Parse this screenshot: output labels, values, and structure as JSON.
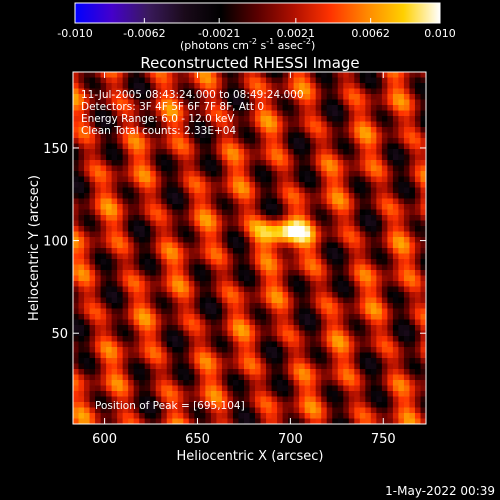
{
  "colorbar": {
    "ticks": [
      "-0.010",
      "-0.0062",
      "-0.0021",
      "0.0021",
      "0.0062",
      "0.010"
    ],
    "range": [
      -0.01,
      0.01
    ],
    "label_main": "(photons cm",
    "label_exp1": "-2",
    "label_mid": " s",
    "label_exp2": "-1",
    "label_end": " asec",
    "label_exp3": "-2",
    "label_close": ")",
    "colormap": [
      "#0000ff",
      "#4400cc",
      "#3a1a5c",
      "#1a0a1a",
      "#000000",
      "#5a0000",
      "#b01000",
      "#ff3300",
      "#ff8800",
      "#ffd000",
      "#ffffff"
    ]
  },
  "info": {
    "time": "11-Jul-2005 08:43:24.000 to 08:49:24.000",
    "detectors": "Detectors: 3F 4F 5F 6F 7F 8F, Att 0",
    "energy": "Energy Range: 6.0 - 12.0 keV",
    "clean": "Clean    Total counts: 2.33E+04",
    "peak": "Position of Peak = [695,104]"
  },
  "footer": {
    "date": "1-May-2022 00:39"
  },
  "chart_data": {
    "type": "heatmap",
    "title": "Reconstructed RHESSI Image",
    "xlabel": "Heliocentric X (arcsec)",
    "ylabel": "Heliocentric Y (arcsec)",
    "xlim": [
      583,
      773
    ],
    "ylim": [
      1,
      191
    ],
    "xticks": [
      600,
      650,
      700,
      750
    ],
    "yticks": [
      50,
      100,
      150
    ],
    "peak": {
      "x": 695,
      "y": 104,
      "value": 0.01
    }
  }
}
